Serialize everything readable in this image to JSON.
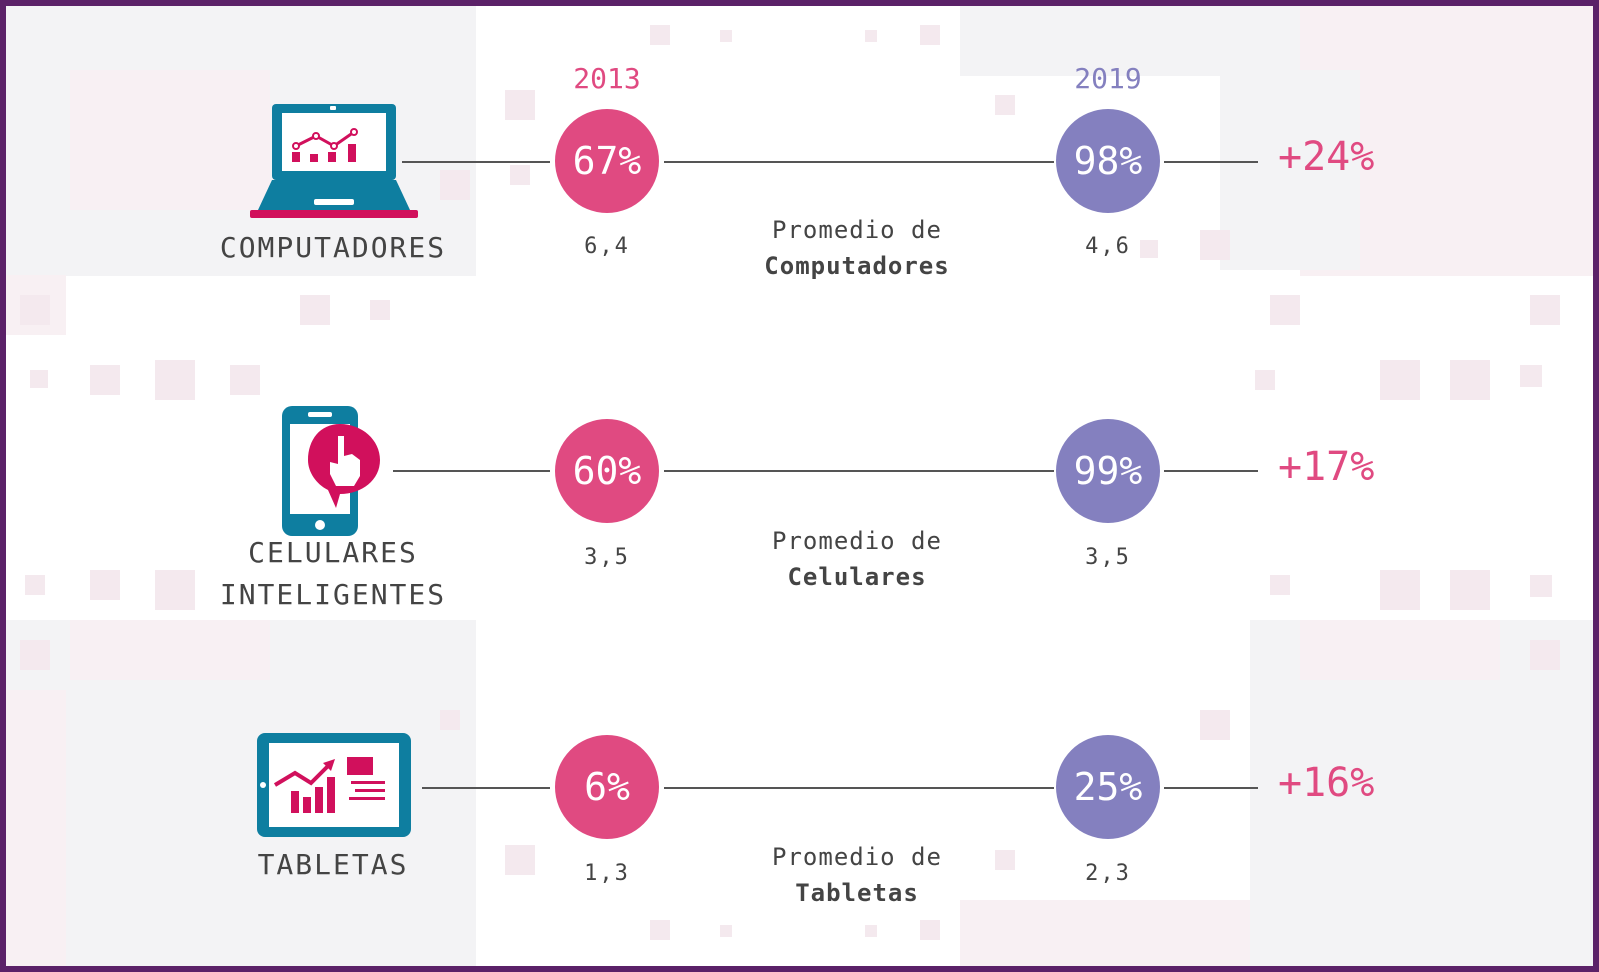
{
  "years": {
    "start": "2013",
    "end": "2019"
  },
  "colors": {
    "start": "#e04a81",
    "end": "#8480bf",
    "frame": "#5b2168",
    "icon_blue": "#0e7ea0",
    "icon_pink": "#d1105c"
  },
  "rows": [
    {
      "icon": "laptop-chart-icon",
      "label_lines": [
        "COMPUTADORES"
      ],
      "start_pct": "67%",
      "end_pct": "98%",
      "start_avg": "6,4",
      "end_avg": "4,6",
      "mid_line1": "Promedio de",
      "mid_line2": "Computadores",
      "delta": "+24%"
    },
    {
      "icon": "smartphone-touch-icon",
      "label_lines": [
        "CELULARES",
        "INTELIGENTES"
      ],
      "start_pct": "60%",
      "end_pct": "99%",
      "start_avg": "3,5",
      "end_avg": "3,5",
      "mid_line1": "Promedio de",
      "mid_line2": "Celulares",
      "delta": "+17%"
    },
    {
      "icon": "tablet-chart-icon",
      "label_lines": [
        "TABLETAS"
      ],
      "start_pct": "6%",
      "end_pct": "25%",
      "start_avg": "1,3",
      "end_avg": "2,3",
      "mid_line1": "Promedio de",
      "mid_line2": "Tabletas",
      "delta": "+16%"
    }
  ]
}
